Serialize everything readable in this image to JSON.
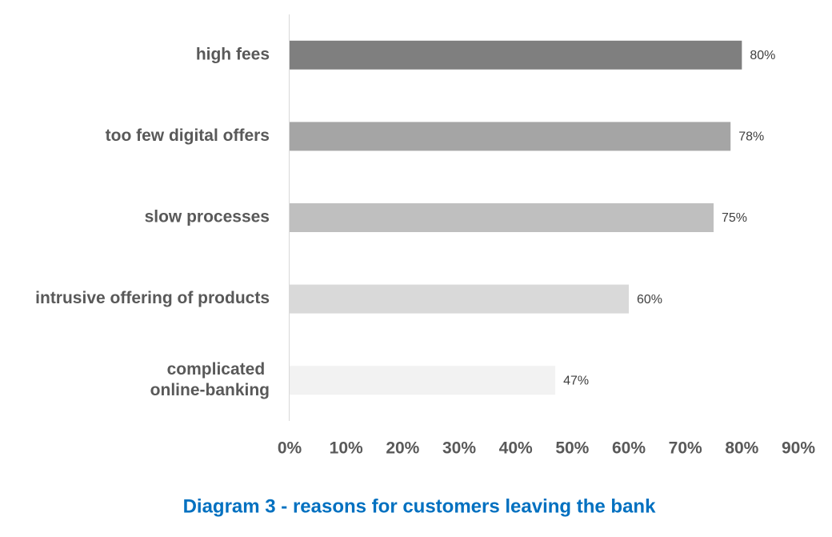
{
  "chart_data": {
    "type": "barh",
    "title": "Diagram 3 - reasons for customers leaving the bank",
    "categories": [
      "high fees",
      "too few digital offers",
      "slow processes",
      "intrusive offering of products",
      "complicated \nonline-banking"
    ],
    "values": [
      80,
      78,
      75,
      60,
      47
    ],
    "value_labels": [
      "80%",
      "78%",
      "75%",
      "60%",
      "47%"
    ],
    "colors": [
      "#7f7f7f",
      "#a5a5a5",
      "#bfbfbf",
      "#d9d9d9",
      "#f2f2f2"
    ],
    "xlim": [
      0,
      90
    ],
    "xticks": [
      {
        "value": 0,
        "label": "0%"
      },
      {
        "value": 10,
        "label": "10%"
      },
      {
        "value": 20,
        "label": "20%"
      },
      {
        "value": 30,
        "label": "30%"
      },
      {
        "value": 40,
        "label": "40%"
      },
      {
        "value": 50,
        "label": "50%"
      },
      {
        "value": 60,
        "label": "60%"
      },
      {
        "value": 70,
        "label": "70%"
      },
      {
        "value": 80,
        "label": "80%"
      },
      {
        "value": 90,
        "label": "90%"
      }
    ],
    "grid": false
  }
}
